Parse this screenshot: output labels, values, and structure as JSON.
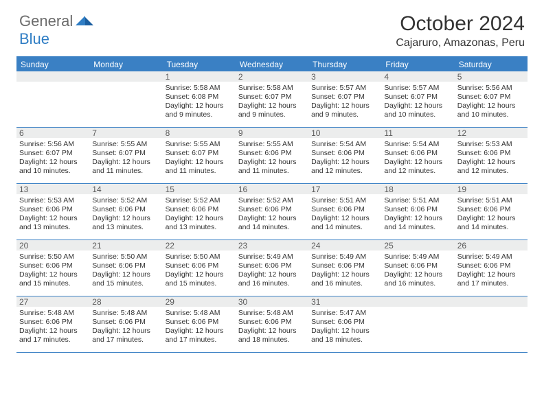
{
  "brand": {
    "general": "General",
    "blue": "Blue"
  },
  "title": "October 2024",
  "location": "Cajaruro, Amazonas, Peru",
  "colors": {
    "accent": "#3a80c4",
    "header_bg": "#3a80c4",
    "daynum_bg": "#eceded",
    "text": "#333333"
  },
  "dow": [
    "Sunday",
    "Monday",
    "Tuesday",
    "Wednesday",
    "Thursday",
    "Friday",
    "Saturday"
  ],
  "weeks": [
    [
      {
        "num": "",
        "lines": [
          "",
          "",
          "",
          ""
        ]
      },
      {
        "num": "",
        "lines": [
          "",
          "",
          "",
          ""
        ]
      },
      {
        "num": "1",
        "lines": [
          "Sunrise: 5:58 AM",
          "Sunset: 6:08 PM",
          "Daylight: 12 hours",
          "and 9 minutes."
        ]
      },
      {
        "num": "2",
        "lines": [
          "Sunrise: 5:58 AM",
          "Sunset: 6:07 PM",
          "Daylight: 12 hours",
          "and 9 minutes."
        ]
      },
      {
        "num": "3",
        "lines": [
          "Sunrise: 5:57 AM",
          "Sunset: 6:07 PM",
          "Daylight: 12 hours",
          "and 9 minutes."
        ]
      },
      {
        "num": "4",
        "lines": [
          "Sunrise: 5:57 AM",
          "Sunset: 6:07 PM",
          "Daylight: 12 hours",
          "and 10 minutes."
        ]
      },
      {
        "num": "5",
        "lines": [
          "Sunrise: 5:56 AM",
          "Sunset: 6:07 PM",
          "Daylight: 12 hours",
          "and 10 minutes."
        ]
      }
    ],
    [
      {
        "num": "6",
        "lines": [
          "Sunrise: 5:56 AM",
          "Sunset: 6:07 PM",
          "Daylight: 12 hours",
          "and 10 minutes."
        ]
      },
      {
        "num": "7",
        "lines": [
          "Sunrise: 5:55 AM",
          "Sunset: 6:07 PM",
          "Daylight: 12 hours",
          "and 11 minutes."
        ]
      },
      {
        "num": "8",
        "lines": [
          "Sunrise: 5:55 AM",
          "Sunset: 6:07 PM",
          "Daylight: 12 hours",
          "and 11 minutes."
        ]
      },
      {
        "num": "9",
        "lines": [
          "Sunrise: 5:55 AM",
          "Sunset: 6:06 PM",
          "Daylight: 12 hours",
          "and 11 minutes."
        ]
      },
      {
        "num": "10",
        "lines": [
          "Sunrise: 5:54 AM",
          "Sunset: 6:06 PM",
          "Daylight: 12 hours",
          "and 12 minutes."
        ]
      },
      {
        "num": "11",
        "lines": [
          "Sunrise: 5:54 AM",
          "Sunset: 6:06 PM",
          "Daylight: 12 hours",
          "and 12 minutes."
        ]
      },
      {
        "num": "12",
        "lines": [
          "Sunrise: 5:53 AM",
          "Sunset: 6:06 PM",
          "Daylight: 12 hours",
          "and 12 minutes."
        ]
      }
    ],
    [
      {
        "num": "13",
        "lines": [
          "Sunrise: 5:53 AM",
          "Sunset: 6:06 PM",
          "Daylight: 12 hours",
          "and 13 minutes."
        ]
      },
      {
        "num": "14",
        "lines": [
          "Sunrise: 5:52 AM",
          "Sunset: 6:06 PM",
          "Daylight: 12 hours",
          "and 13 minutes."
        ]
      },
      {
        "num": "15",
        "lines": [
          "Sunrise: 5:52 AM",
          "Sunset: 6:06 PM",
          "Daylight: 12 hours",
          "and 13 minutes."
        ]
      },
      {
        "num": "16",
        "lines": [
          "Sunrise: 5:52 AM",
          "Sunset: 6:06 PM",
          "Daylight: 12 hours",
          "and 14 minutes."
        ]
      },
      {
        "num": "17",
        "lines": [
          "Sunrise: 5:51 AM",
          "Sunset: 6:06 PM",
          "Daylight: 12 hours",
          "and 14 minutes."
        ]
      },
      {
        "num": "18",
        "lines": [
          "Sunrise: 5:51 AM",
          "Sunset: 6:06 PM",
          "Daylight: 12 hours",
          "and 14 minutes."
        ]
      },
      {
        "num": "19",
        "lines": [
          "Sunrise: 5:51 AM",
          "Sunset: 6:06 PM",
          "Daylight: 12 hours",
          "and 14 minutes."
        ]
      }
    ],
    [
      {
        "num": "20",
        "lines": [
          "Sunrise: 5:50 AM",
          "Sunset: 6:06 PM",
          "Daylight: 12 hours",
          "and 15 minutes."
        ]
      },
      {
        "num": "21",
        "lines": [
          "Sunrise: 5:50 AM",
          "Sunset: 6:06 PM",
          "Daylight: 12 hours",
          "and 15 minutes."
        ]
      },
      {
        "num": "22",
        "lines": [
          "Sunrise: 5:50 AM",
          "Sunset: 6:06 PM",
          "Daylight: 12 hours",
          "and 15 minutes."
        ]
      },
      {
        "num": "23",
        "lines": [
          "Sunrise: 5:49 AM",
          "Sunset: 6:06 PM",
          "Daylight: 12 hours",
          "and 16 minutes."
        ]
      },
      {
        "num": "24",
        "lines": [
          "Sunrise: 5:49 AM",
          "Sunset: 6:06 PM",
          "Daylight: 12 hours",
          "and 16 minutes."
        ]
      },
      {
        "num": "25",
        "lines": [
          "Sunrise: 5:49 AM",
          "Sunset: 6:06 PM",
          "Daylight: 12 hours",
          "and 16 minutes."
        ]
      },
      {
        "num": "26",
        "lines": [
          "Sunrise: 5:49 AM",
          "Sunset: 6:06 PM",
          "Daylight: 12 hours",
          "and 17 minutes."
        ]
      }
    ],
    [
      {
        "num": "27",
        "lines": [
          "Sunrise: 5:48 AM",
          "Sunset: 6:06 PM",
          "Daylight: 12 hours",
          "and 17 minutes."
        ]
      },
      {
        "num": "28",
        "lines": [
          "Sunrise: 5:48 AM",
          "Sunset: 6:06 PM",
          "Daylight: 12 hours",
          "and 17 minutes."
        ]
      },
      {
        "num": "29",
        "lines": [
          "Sunrise: 5:48 AM",
          "Sunset: 6:06 PM",
          "Daylight: 12 hours",
          "and 17 minutes."
        ]
      },
      {
        "num": "30",
        "lines": [
          "Sunrise: 5:48 AM",
          "Sunset: 6:06 PM",
          "Daylight: 12 hours",
          "and 18 minutes."
        ]
      },
      {
        "num": "31",
        "lines": [
          "Sunrise: 5:47 AM",
          "Sunset: 6:06 PM",
          "Daylight: 12 hours",
          "and 18 minutes."
        ]
      },
      {
        "num": "",
        "lines": [
          "",
          "",
          "",
          ""
        ]
      },
      {
        "num": "",
        "lines": [
          "",
          "",
          "",
          ""
        ]
      }
    ]
  ]
}
